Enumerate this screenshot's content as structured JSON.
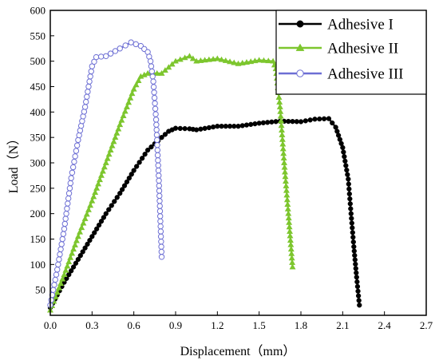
{
  "chart_data": {
    "type": "line",
    "title": "",
    "xlabel": "Displacement（mm）",
    "ylabel": "Load（N）",
    "xlim": [
      0.0,
      2.7
    ],
    "ylim": [
      0,
      600
    ],
    "x_ticks": [
      "0.0",
      "0.3",
      "0.6",
      "0.9",
      "1.2",
      "1.5",
      "1.8",
      "2.1",
      "2.4",
      "2.7"
    ],
    "y_ticks": [
      "50",
      "100",
      "150",
      "200",
      "250",
      "300",
      "350",
      "400",
      "450",
      "500",
      "550",
      "600"
    ],
    "grid": false,
    "legend_position": "top-right",
    "series": [
      {
        "name": "Adhesive I",
        "color": "#000000",
        "marker": "filled-circle",
        "points": [
          [
            0.0,
            15
          ],
          [
            0.1,
            65
          ],
          [
            0.2,
            110
          ],
          [
            0.3,
            155
          ],
          [
            0.4,
            200
          ],
          [
            0.5,
            240
          ],
          [
            0.6,
            285
          ],
          [
            0.7,
            325
          ],
          [
            0.8,
            350
          ],
          [
            0.85,
            362
          ],
          [
            0.9,
            368
          ],
          [
            1.0,
            367
          ],
          [
            1.05,
            365
          ],
          [
            1.2,
            372
          ],
          [
            1.35,
            372
          ],
          [
            1.5,
            378
          ],
          [
            1.65,
            382
          ],
          [
            1.8,
            381
          ],
          [
            1.9,
            386
          ],
          [
            2.0,
            387
          ],
          [
            2.05,
            370
          ],
          [
            2.1,
            330
          ],
          [
            2.14,
            268
          ],
          [
            2.16,
            200
          ],
          [
            2.18,
            135
          ],
          [
            2.2,
            75
          ],
          [
            2.22,
            20
          ]
        ]
      },
      {
        "name": "Adhesive II",
        "color": "#7dc62e",
        "marker": "filled-triangle",
        "points": [
          [
            0.0,
            10
          ],
          [
            0.1,
            80
          ],
          [
            0.2,
            155
          ],
          [
            0.3,
            225
          ],
          [
            0.4,
            300
          ],
          [
            0.5,
            375
          ],
          [
            0.6,
            445
          ],
          [
            0.65,
            470
          ],
          [
            0.7,
            476
          ],
          [
            0.8,
            476
          ],
          [
            0.9,
            500
          ],
          [
            1.0,
            510
          ],
          [
            1.05,
            500
          ],
          [
            1.2,
            505
          ],
          [
            1.35,
            495
          ],
          [
            1.5,
            502
          ],
          [
            1.6,
            500
          ],
          [
            1.62,
            485
          ],
          [
            1.65,
            410
          ],
          [
            1.68,
            300
          ],
          [
            1.71,
            200
          ],
          [
            1.74,
            95
          ]
        ]
      },
      {
        "name": "Adhesive III",
        "color": "#6d6fd4",
        "marker": "open-circle",
        "points": [
          [
            0.0,
            20
          ],
          [
            0.05,
            90
          ],
          [
            0.1,
            170
          ],
          [
            0.15,
            270
          ],
          [
            0.2,
            345
          ],
          [
            0.25,
            410
          ],
          [
            0.3,
            490
          ],
          [
            0.33,
            508
          ],
          [
            0.4,
            510
          ],
          [
            0.5,
            525
          ],
          [
            0.58,
            537
          ],
          [
            0.65,
            530
          ],
          [
            0.7,
            518
          ],
          [
            0.72,
            500
          ],
          [
            0.74,
            460
          ],
          [
            0.76,
            385
          ],
          [
            0.78,
            265
          ],
          [
            0.8,
            115
          ]
        ]
      }
    ]
  }
}
